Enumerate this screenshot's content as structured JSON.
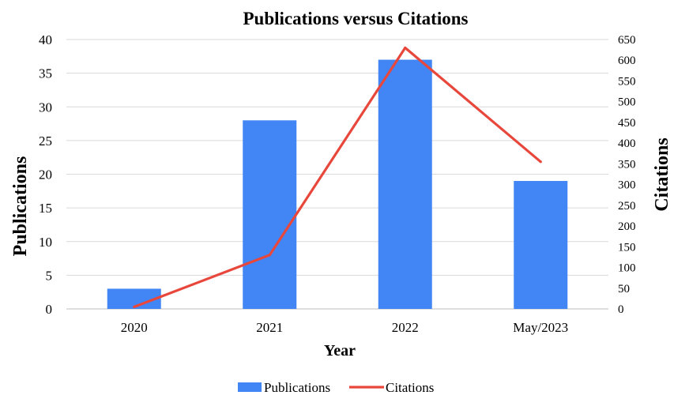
{
  "chart_data": {
    "type": "bar",
    "title": "Publications versus Citations",
    "xlabel": "Year",
    "ylabel": "Publications",
    "y2label": "Citations",
    "categories": [
      "2020",
      "2021",
      "2022",
      "May/2023"
    ],
    "ylim": [
      0,
      40
    ],
    "y2lim": [
      0,
      650
    ],
    "yticks": [
      "0",
      "5",
      "10",
      "15",
      "20",
      "25",
      "30",
      "35",
      "40"
    ],
    "y2ticks": [
      "0",
      "50",
      "100",
      "150",
      "200",
      "250",
      "300",
      "350",
      "400",
      "450",
      "500",
      "550",
      "600",
      "650"
    ],
    "grid": true,
    "legend_position": "bottom",
    "series": [
      {
        "name": "Publications",
        "type": "bar",
        "axis": "left",
        "color": "#4285f4",
        "values": [
          3,
          28,
          37,
          19
        ]
      },
      {
        "name": "Citations",
        "type": "line",
        "axis": "right",
        "color": "#e8473c",
        "values": [
          5,
          130,
          630,
          355
        ]
      }
    ]
  }
}
